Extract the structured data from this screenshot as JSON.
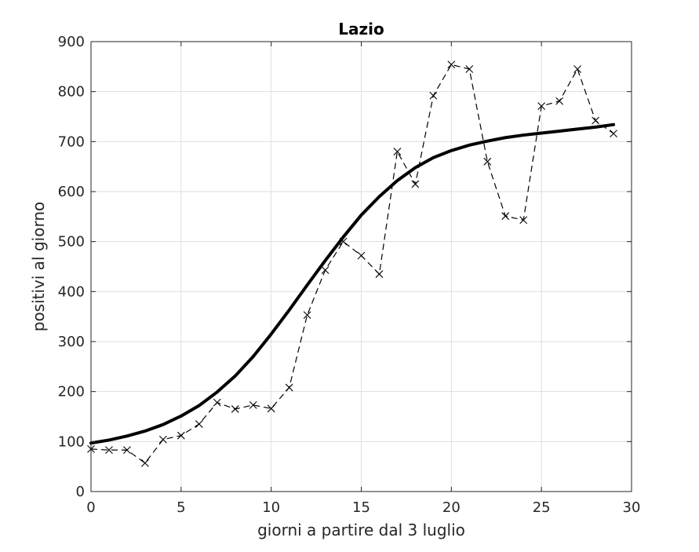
{
  "chart_data": {
    "type": "line",
    "title": "Lazio",
    "xlabel": "giorni a partire dal 3 luglio",
    "ylabel": "positivi al giorno",
    "xlim": [
      0,
      30
    ],
    "ylim": [
      0,
      900
    ],
    "xticks": [
      0,
      5,
      10,
      15,
      20,
      25,
      30
    ],
    "yticks": [
      0,
      100,
      200,
      300,
      400,
      500,
      600,
      700,
      800,
      900
    ],
    "grid": true,
    "legend": "none",
    "series": [
      {
        "style": "dashed-with-x-markers",
        "color": "#000000",
        "x": [
          0,
          1,
          2,
          3,
          4,
          5,
          6,
          7,
          8,
          9,
          10,
          11,
          12,
          13,
          14,
          15,
          16,
          17,
          18,
          19,
          20,
          21,
          22,
          23,
          24,
          25,
          26,
          27,
          28,
          29
        ],
        "values": [
          85,
          83,
          83,
          57,
          104,
          112,
          135,
          178,
          165,
          173,
          166,
          208,
          353,
          443,
          500,
          472,
          435,
          680,
          615,
          792,
          854,
          845,
          660,
          551,
          543,
          771,
          781,
          845,
          742,
          716
        ]
      },
      {
        "style": "solid-thick",
        "color": "#000000",
        "x": [
          0,
          1,
          2,
          3,
          4,
          5,
          6,
          7,
          8,
          9,
          10,
          11,
          12,
          13,
          14,
          15,
          16,
          17,
          18,
          19,
          20,
          21,
          22,
          23,
          24,
          25,
          26,
          27,
          28,
          29
        ],
        "values": [
          97,
          103,
          111,
          121,
          134,
          151,
          172,
          199,
          231,
          270,
          315,
          363,
          413,
          462,
          509,
          553,
          590,
          622,
          648,
          668,
          682,
          693,
          701,
          708,
          713,
          717,
          721,
          725,
          729,
          734
        ]
      }
    ]
  }
}
